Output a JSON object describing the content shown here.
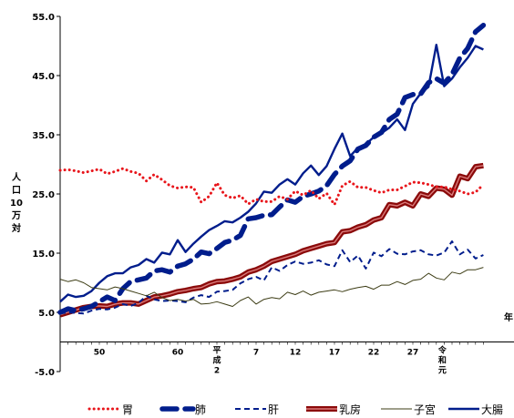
{
  "chart_data": {
    "type": "line",
    "ylabel": "人口10万対",
    "xlabel": "年",
    "ylim": [
      -5,
      55
    ],
    "yticks": [
      "55.0",
      "45.0",
      "35.0",
      "25.0",
      "15.0",
      "5.0",
      "-5.0"
    ],
    "xlim": [
      45,
      31
    ],
    "x_ticks": [
      {
        "era": "showa",
        "year": 50,
        "label": "50"
      },
      {
        "era": "showa",
        "year": 60,
        "label": "60"
      },
      {
        "era": "heisei",
        "year": 2,
        "label": "平成2"
      },
      {
        "era": "heisei",
        "year": 7,
        "label": "7"
      },
      {
        "era": "heisei",
        "year": 12,
        "label": "12"
      },
      {
        "era": "heisei",
        "year": 17,
        "label": "17"
      },
      {
        "era": "heisei",
        "year": 22,
        "label": "22"
      },
      {
        "era": "heisei",
        "year": 27,
        "label": "27"
      },
      {
        "era": "heisei",
        "year": 31,
        "label": "令和元"
      }
    ],
    "x_tick_labels": [
      "50",
      "60",
      "平",
      "成",
      "2",
      "7",
      "12",
      "17",
      "22",
      "27",
      "令和元"
    ],
    "start_year": 1970,
    "grid": false,
    "legend_position": "bottom",
    "series": [
      {
        "name": "胃",
        "color": "#e8151b",
        "style": "dotted",
        "values": [
          29.0,
          29.1,
          28.9,
          28.6,
          28.9,
          29.2,
          28.4,
          28.8,
          29.3,
          28.8,
          28.5,
          27.2,
          28.3,
          27.4,
          26.4,
          26.0,
          26.2,
          26.1,
          23.6,
          24.6,
          26.9,
          24.8,
          24.3,
          24.7,
          23.3,
          24.1,
          23.7,
          23.7,
          24.6,
          24.1,
          25.5,
          24.8,
          25.6,
          24.2,
          25.1,
          23.2,
          26.4,
          27.1,
          26.1,
          26.1,
          25.6,
          25.2,
          25.7,
          25.7,
          26.3,
          27.0,
          26.9,
          26.6,
          26.2,
          26.2,
          25.8,
          25.5,
          25.0,
          25.3,
          26.6
        ]
      },
      {
        "name": "肺",
        "color": "#001d8c",
        "style": "heavy-dash",
        "values": [
          5.0,
          5.6,
          5.3,
          5.6,
          6.0,
          6.8,
          7.6,
          7.0,
          9.0,
          10.2,
          10.5,
          10.8,
          12.0,
          12.2,
          11.8,
          12.8,
          13.2,
          14.0,
          15.2,
          14.9,
          15.8,
          16.8,
          17.2,
          18.0,
          20.8,
          21.0,
          21.4,
          21.5,
          22.8,
          24.0,
          23.6,
          24.6,
          25.0,
          25.5,
          26.4,
          28.3,
          29.7,
          30.6,
          32.6,
          33.2,
          34.6,
          35.4,
          37.6,
          38.5,
          41.3,
          41.8,
          41.9,
          43.8,
          44.5,
          43.7,
          45.2,
          48.0,
          49.6,
          52.4,
          53.5
        ]
      },
      {
        "name": "肝",
        "color": "#001d8c",
        "style": "dashed",
        "values": [
          4.8,
          5.0,
          4.9,
          4.8,
          5.3,
          5.6,
          5.5,
          5.8,
          6.4,
          6.1,
          6.6,
          7.8,
          7.2,
          6.9,
          7.0,
          6.9,
          6.7,
          7.5,
          7.9,
          7.6,
          8.5,
          8.6,
          8.8,
          9.9,
          10.6,
          11.0,
          10.4,
          12.6,
          12.0,
          13.0,
          13.6,
          13.2,
          13.4,
          13.8,
          13.1,
          12.8,
          15.5,
          13.5,
          14.6,
          12.4,
          15.1,
          14.5,
          15.7,
          14.9,
          14.8,
          15.3,
          15.5,
          14.8,
          14.6,
          15.1,
          17.0,
          14.8,
          15.6,
          14.1,
          14.7
        ]
      },
      {
        "name": "乳房",
        "color": "#8b0a0a",
        "style": "heavy-double",
        "values": [
          4.6,
          5.0,
          5.4,
          5.8,
          6.0,
          6.1,
          6.0,
          6.4,
          6.6,
          6.6,
          6.4,
          7.0,
          7.6,
          7.8,
          8.1,
          8.5,
          8.7,
          9.0,
          9.2,
          9.8,
          10.2,
          10.3,
          10.6,
          11.0,
          11.8,
          12.2,
          12.8,
          13.6,
          14.0,
          14.4,
          14.8,
          15.4,
          15.8,
          16.2,
          16.6,
          16.8,
          18.6,
          18.8,
          19.4,
          19.8,
          20.6,
          21.0,
          23.2,
          23.0,
          23.6,
          23.0,
          25.0,
          24.6,
          26.0,
          25.8,
          24.8,
          28.0,
          27.6,
          29.6,
          29.8
        ]
      },
      {
        "name": "子宮",
        "color": "#3c3c14",
        "style": "thin",
        "values": [
          10.6,
          10.2,
          10.5,
          10.0,
          9.2,
          9.0,
          8.8,
          9.3,
          9.0,
          8.6,
          8.2,
          7.8,
          8.4,
          7.5,
          7.0,
          7.2,
          6.9,
          7.2,
          6.4,
          6.5,
          6.8,
          6.4,
          6.0,
          7.0,
          7.6,
          6.4,
          7.2,
          7.5,
          7.3,
          8.4,
          8.0,
          8.6,
          7.9,
          8.4,
          8.6,
          8.8,
          8.5,
          8.9,
          9.2,
          9.4,
          8.9,
          9.6,
          9.6,
          10.2,
          9.7,
          10.4,
          10.6,
          11.6,
          10.8,
          10.5,
          11.8,
          11.5,
          12.2,
          12.2,
          12.6
        ]
      },
      {
        "name": "大腸",
        "color": "#001d8c",
        "style": "solid",
        "values": [
          6.8,
          8.0,
          7.6,
          7.8,
          8.6,
          10.0,
          11.1,
          11.6,
          11.6,
          12.6,
          13.0,
          14.0,
          13.4,
          15.1,
          14.8,
          17.2,
          15.2,
          16.6,
          17.8,
          18.9,
          19.6,
          20.4,
          20.2,
          21.0,
          22.0,
          23.4,
          25.4,
          25.2,
          26.6,
          27.5,
          26.6,
          28.5,
          29.8,
          28.2,
          29.7,
          32.6,
          35.2,
          31.4,
          32.8,
          33.4,
          34.6,
          35.3,
          36.2,
          37.6,
          35.8,
          40.2,
          42.0,
          43.1,
          50.2,
          43.2,
          44.5,
          46.4,
          48.0,
          50.0,
          49.4
        ]
      }
    ]
  }
}
